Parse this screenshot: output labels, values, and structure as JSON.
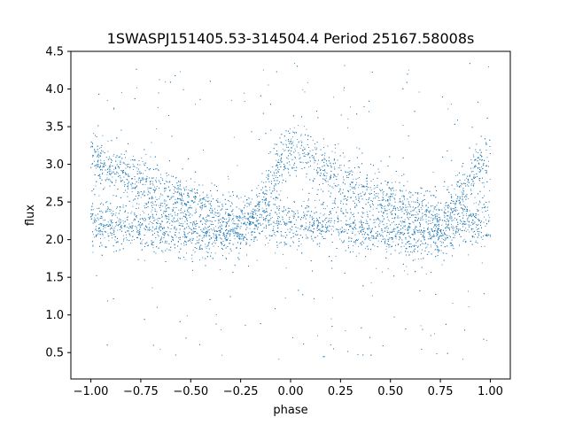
{
  "chart_data": {
    "type": "scatter",
    "title": "1SWASPJ151405.53-314504.4 Period 25167.58008s",
    "xlabel": "phase",
    "ylabel": "flux",
    "xlim": [
      -1.1,
      1.1
    ],
    "ylim": [
      0.15,
      4.5
    ],
    "xticks": [
      -1.0,
      -0.75,
      -0.5,
      -0.25,
      0.0,
      0.25,
      0.5,
      0.75,
      1.0
    ],
    "xtick_labels": [
      "−1.00",
      "−0.75",
      "−0.50",
      "−0.25",
      "0.00",
      "0.25",
      "0.50",
      "0.75",
      "1.00"
    ],
    "yticks": [
      0.5,
      1.0,
      1.5,
      2.0,
      2.5,
      3.0,
      3.5,
      4.0,
      4.5
    ],
    "ytick_labels": [
      "0.5",
      "1.0",
      "1.5",
      "2.0",
      "2.5",
      "3.0",
      "3.5",
      "4.0",
      "4.5"
    ],
    "marker_color": "#1f77b4",
    "grid": false,
    "legend": "none",
    "x_data_range": [
      -1.0,
      1.0
    ],
    "series": [
      {
        "points_sampled": [
          [
            -1.0,
            3.1
          ],
          [
            -1.0,
            2.2
          ],
          [
            -0.95,
            3.0
          ],
          [
            -0.95,
            2.2
          ],
          [
            -0.9,
            2.95
          ],
          [
            -0.9,
            2.2
          ],
          [
            -0.85,
            2.9
          ],
          [
            -0.85,
            2.2
          ],
          [
            -0.8,
            2.85
          ],
          [
            -0.8,
            2.2
          ],
          [
            -0.75,
            2.8
          ],
          [
            -0.75,
            2.2
          ],
          [
            -0.7,
            2.72
          ],
          [
            -0.7,
            2.18
          ],
          [
            -0.65,
            2.65
          ],
          [
            -0.65,
            2.15
          ],
          [
            -0.6,
            2.6
          ],
          [
            -0.6,
            2.12
          ],
          [
            -0.55,
            2.55
          ],
          [
            -0.55,
            2.1
          ],
          [
            -0.5,
            2.5
          ],
          [
            -0.5,
            2.08
          ],
          [
            -0.45,
            2.45
          ],
          [
            -0.45,
            2.05
          ],
          [
            -0.4,
            2.4
          ],
          [
            -0.4,
            2.03
          ],
          [
            -0.35,
            2.35
          ],
          [
            -0.35,
            2.02
          ],
          [
            -0.3,
            2.3
          ],
          [
            -0.3,
            2.05
          ],
          [
            -0.25,
            2.25
          ],
          [
            -0.25,
            2.1
          ],
          [
            -0.2,
            2.3
          ],
          [
            -0.2,
            2.2
          ],
          [
            -0.15,
            2.5
          ],
          [
            -0.15,
            2.3
          ],
          [
            -0.1,
            2.75
          ],
          [
            -0.1,
            2.3
          ],
          [
            -0.05,
            3.0
          ],
          [
            -0.05,
            2.25
          ],
          [
            0.0,
            3.2
          ],
          [
            0.0,
            2.2
          ],
          [
            0.05,
            3.15
          ],
          [
            0.05,
            2.2
          ],
          [
            0.1,
            3.05
          ],
          [
            0.1,
            2.2
          ],
          [
            0.15,
            2.98
          ],
          [
            0.15,
            2.2
          ],
          [
            0.2,
            2.9
          ],
          [
            0.2,
            2.2
          ],
          [
            0.25,
            2.82
          ],
          [
            0.25,
            2.2
          ],
          [
            0.3,
            2.75
          ],
          [
            0.3,
            2.18
          ],
          [
            0.35,
            2.68
          ],
          [
            0.35,
            2.15
          ],
          [
            0.4,
            2.62
          ],
          [
            0.4,
            2.12
          ],
          [
            0.45,
            2.57
          ],
          [
            0.45,
            2.1
          ],
          [
            0.5,
            2.52
          ],
          [
            0.5,
            2.08
          ],
          [
            0.55,
            2.46
          ],
          [
            0.55,
            2.05
          ],
          [
            0.6,
            2.4
          ],
          [
            0.6,
            2.03
          ],
          [
            0.65,
            2.35
          ],
          [
            0.65,
            2.02
          ],
          [
            0.7,
            2.3
          ],
          [
            0.7,
            2.03
          ],
          [
            0.75,
            2.27
          ],
          [
            0.75,
            2.07
          ],
          [
            0.8,
            2.35
          ],
          [
            0.8,
            2.2
          ],
          [
            0.85,
            2.55
          ],
          [
            0.85,
            2.25
          ],
          [
            0.9,
            2.75
          ],
          [
            0.9,
            2.25
          ],
          [
            0.95,
            2.95
          ],
          [
            0.95,
            2.2
          ],
          [
            1.0,
            3.1
          ],
          [
            1.0,
            2.2
          ]
        ]
      }
    ]
  }
}
